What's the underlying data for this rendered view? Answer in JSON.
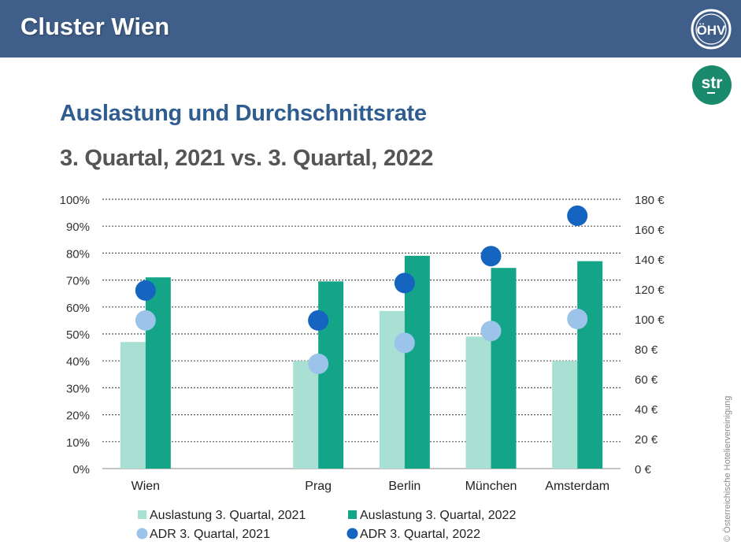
{
  "header": {
    "title": "Cluster Wien",
    "logo": "ÖHV",
    "logo2": "str"
  },
  "titles": {
    "line1": "Auslastung und Durchschnittsrate",
    "line2": "3. Quartal, 2021 vs. 3. Quartal, 2022"
  },
  "copyright": "© Österreichische Hoteliervereinigung",
  "colors": {
    "header": "#3f5f8a",
    "occ2021": "#a8e0d4",
    "occ2022": "#14a589",
    "adr2021": "#9cc3ea",
    "adr2022": "#1565c0",
    "str_logo": "#1a8a6d"
  },
  "chart_data": {
    "type": "bar",
    "categories": [
      "Wien",
      "",
      "Prag",
      "Berlin",
      "München",
      "Amsterdam"
    ],
    "y_left": {
      "ticks": [
        "0%",
        "10%",
        "20%",
        "30%",
        "40%",
        "50%",
        "60%",
        "70%",
        "80%",
        "90%",
        "100%"
      ],
      "range": [
        0,
        100
      ]
    },
    "y_right": {
      "ticks": [
        "0 €",
        "20 €",
        "40 €",
        "60 €",
        "80 €",
        "100 €",
        "120 €",
        "140 €",
        "160 €",
        "180 €"
      ],
      "range": [
        0,
        180
      ]
    },
    "series": [
      {
        "name": "Auslastung 3. Quartal, 2021",
        "kind": "bar",
        "axis": "left",
        "color": "#a8e0d4",
        "values": [
          47,
          null,
          40,
          58.5,
          49,
          40
        ]
      },
      {
        "name": "Auslastung 3. Quartal, 2022",
        "kind": "bar",
        "axis": "left",
        "color": "#14a589",
        "values": [
          71,
          null,
          69.5,
          79,
          74.5,
          77
        ]
      },
      {
        "name": "ADR 3. Quartal, 2021",
        "kind": "dot",
        "axis": "right",
        "color": "#9cc3ea",
        "values": [
          99,
          null,
          70,
          84,
          92,
          100
        ]
      },
      {
        "name": "ADR 3. Quartal, 2022",
        "kind": "dot",
        "axis": "right",
        "color": "#1565c0",
        "values": [
          119,
          null,
          99,
          124,
          142,
          169
        ]
      }
    ],
    "grid": true,
    "legend_position": "bottom"
  }
}
